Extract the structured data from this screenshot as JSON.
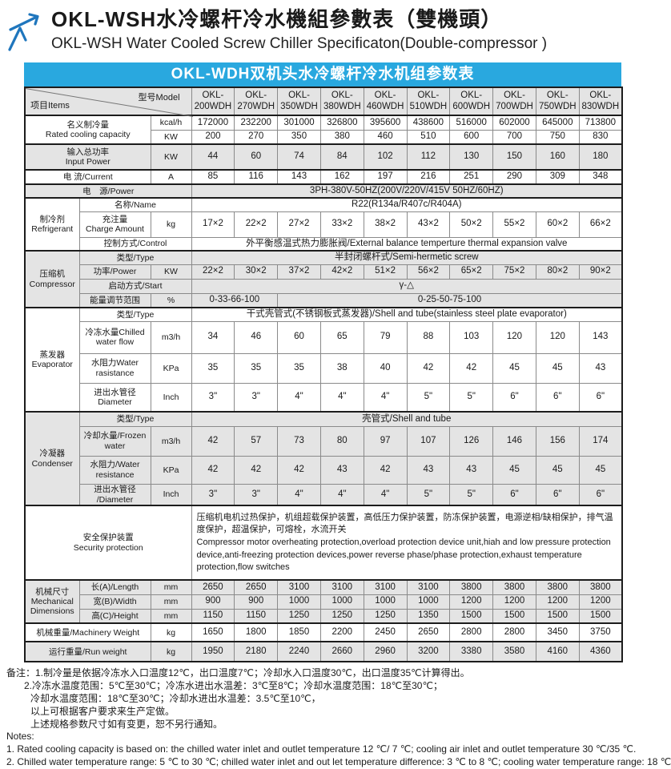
{
  "page": {
    "title_cn": "OKL-WSH水冷螺杆冷水機組參數表（雙機頭）",
    "title_en": "OKL-WSH Water Cooled Screw Chiller Specificaton(Double-compressor )"
  },
  "banner": {
    "text": "OKL-WDH双机头水冷螺杆冷水机组参数表"
  },
  "colors": {
    "banner_blue": "#29a8df",
    "logo_blue": "#1f76bd",
    "band_gray": "#e4e4e4"
  },
  "table": {
    "corner": {
      "items_label": "项目Items",
      "model_label": "型号Model"
    },
    "model_prefix": "OKL-",
    "models": [
      "200WDH",
      "270WDH",
      "350WDH",
      "380WDH",
      "460WDH",
      "510WDH",
      "600WDH",
      "700WDH",
      "750WDH",
      "830WDH"
    ],
    "rows": [
      {
        "name": "rated-cooling-kcal",
        "shade": "white",
        "section_start": true,
        "label": {
          "lines": [
            "名义制冷量",
            "Rated cooling capacity"
          ],
          "colspan": 2,
          "rowspan": 2
        },
        "unit": "kcal/h",
        "values": [
          "172000",
          "232200",
          "301000",
          "326800",
          "395600",
          "438600",
          "516000",
          "602000",
          "645000",
          "713800"
        ]
      },
      {
        "name": "rated-cooling-kw",
        "shade": "white",
        "unit": "KW",
        "values": [
          "200",
          "270",
          "350",
          "380",
          "460",
          "510",
          "600",
          "700",
          "750",
          "830"
        ]
      },
      {
        "name": "input-power",
        "shade": "gray",
        "section_start": true,
        "label": {
          "lines": [
            "输入总功率",
            "Input Power"
          ],
          "colspan": 2
        },
        "unit": "KW",
        "values": [
          "44",
          "60",
          "74",
          "84",
          "102",
          "112",
          "130",
          "150",
          "160",
          "180"
        ]
      },
      {
        "name": "current",
        "shade": "white",
        "section_start": true,
        "label": {
          "lines": [
            "电 流/Current"
          ],
          "colspan": 2
        },
        "unit": "A",
        "values": [
          "85",
          "116",
          "143",
          "162",
          "197",
          "216",
          "251",
          "290",
          "309",
          "348"
        ]
      },
      {
        "name": "power-supply",
        "shade": "gray",
        "section_start": true,
        "label": {
          "lines": [
            "电　源/Power"
          ],
          "colspan": 3
        },
        "value": {
          "text": "3PH-380V-50HZ(200V/220V/415V  50HZ/60HZ)",
          "colspan": 10
        }
      },
      {
        "name": "refrigerant-name",
        "shade": "white",
        "section_start": true,
        "group": {
          "lines": [
            "制冷剂",
            "Refrigerant"
          ],
          "rowspan": 3
        },
        "label": {
          "lines": [
            "名称/Name"
          ],
          "colspan": 2
        },
        "value": {
          "text": "R22(R134a/R407c/R404A)",
          "colspan": 10
        }
      },
      {
        "name": "refrigerant-charge",
        "shade": "white",
        "label": {
          "lines": [
            "充注量",
            "Charge Amount"
          ],
          "colspan": 1
        },
        "unit": "kg",
        "values": [
          "17×2",
          "22×2",
          "27×2",
          "33×2",
          "38×2",
          "43×2",
          "50×2",
          "55×2",
          "60×2",
          "66×2"
        ]
      },
      {
        "name": "refrigerant-control",
        "shade": "white",
        "label": {
          "lines": [
            "控制方式/Control"
          ],
          "colspan": 2
        },
        "value": {
          "text": "外平衡感温式热力膨胀阀/External balance temperture thermal expansion valve",
          "colspan": 10
        }
      },
      {
        "name": "compressor-type",
        "shade": "gray",
        "section_start": true,
        "group": {
          "lines": [
            "压缩机",
            "Compressor"
          ],
          "rowspan": 4
        },
        "label": {
          "lines": [
            "类型/Type"
          ],
          "colspan": 2
        },
        "value": {
          "text": "半封闭螺杆式/Semi-hermetic screw",
          "colspan": 10
        }
      },
      {
        "name": "compressor-power",
        "shade": "gray",
        "label": {
          "lines": [
            "功率/Power"
          ],
          "colspan": 1
        },
        "unit": "KW",
        "values": [
          "22×2",
          "30×2",
          "37×2",
          "42×2",
          "51×2",
          "56×2",
          "65×2",
          "75×2",
          "80×2",
          "90×2"
        ]
      },
      {
        "name": "compressor-start",
        "shade": "gray",
        "label": {
          "lines": [
            "启动方式/Start"
          ],
          "colspan": 2
        },
        "value": {
          "text": "γ-△",
          "colspan": 10
        }
      },
      {
        "name": "energy-range",
        "shade": "gray",
        "label": {
          "lines": [
            "能量调节范围"
          ],
          "colspan": 1
        },
        "unit": "%",
        "values_span": [
          {
            "text": "0-33-66-100",
            "colspan": 2
          },
          {
            "text": "0-25-50-75-100",
            "colspan": 8
          }
        ]
      },
      {
        "name": "evaporator-type",
        "shade": "white",
        "section_start": true,
        "group": {
          "lines": [
            "蒸发器",
            "Evaporator"
          ],
          "rowspan": 4
        },
        "label": {
          "lines": [
            "类型/Type"
          ],
          "colspan": 2
        },
        "value": {
          "text": "干式壳管式(不锈钢板式蒸发器)/Shell and tube(stainless steel plate evaporator)",
          "colspan": 10
        }
      },
      {
        "name": "chilled-water-flow",
        "shade": "white",
        "label": {
          "lines": [
            "冷冻水量Chilled",
            "water flow"
          ],
          "colspan": 1
        },
        "unit": "m3/h",
        "values": [
          "34",
          "46",
          "60",
          "65",
          "79",
          "88",
          "103",
          "120",
          "120",
          "143"
        ]
      },
      {
        "name": "evap-water-resistance",
        "shade": "white",
        "label": {
          "lines": [
            "水阻力Water",
            "rasistance"
          ],
          "colspan": 1
        },
        "unit": "KPa",
        "values": [
          "35",
          "35",
          "35",
          "38",
          "40",
          "42",
          "42",
          "45",
          "45",
          "43"
        ]
      },
      {
        "name": "evap-pipe-diameter",
        "shade": "white",
        "label": {
          "lines": [
            "进出水管径",
            "Diameter"
          ],
          "colspan": 1
        },
        "unit": "Inch",
        "values": [
          "3\"",
          "3\"",
          "4\"",
          "4\"",
          "4\"",
          "5\"",
          "5\"",
          "6\"",
          "6\"",
          "6\""
        ]
      },
      {
        "name": "condenser-type",
        "shade": "gray",
        "section_start": true,
        "group": {
          "lines": [
            "冷凝器",
            "Condenser"
          ],
          "rowspan": 4
        },
        "label": {
          "lines": [
            "类型/Type"
          ],
          "colspan": 2
        },
        "value": {
          "text": "壳管式/Shell and tube",
          "colspan": 10
        }
      },
      {
        "name": "cooling-water-flow",
        "shade": "gray",
        "label": {
          "lines": [
            "冷却水量/Frozen",
            "water"
          ],
          "colspan": 1
        },
        "unit": "m3/h",
        "values": [
          "42",
          "57",
          "73",
          "80",
          "97",
          "107",
          "126",
          "146",
          "156",
          "174"
        ]
      },
      {
        "name": "cond-water-resistance",
        "shade": "gray",
        "label": {
          "lines": [
            "水阻力/Water",
            "resistance"
          ],
          "colspan": 1
        },
        "unit": "KPa",
        "values": [
          "42",
          "42",
          "42",
          "43",
          "42",
          "43",
          "43",
          "45",
          "45",
          "45"
        ]
      },
      {
        "name": "cond-pipe-diameter",
        "shade": "gray",
        "label": {
          "lines": [
            "进出水管径",
            "/Diameter"
          ],
          "colspan": 1
        },
        "unit": "Inch",
        "values": [
          "3\"",
          "3\"",
          "4\"",
          "4\"",
          "4\"",
          "5\"",
          "5\"",
          "6\"",
          "6\"",
          "6\""
        ]
      },
      {
        "name": "security-protection",
        "shade": "white",
        "section_start": true,
        "label": {
          "lines": [
            "安全保护装置",
            "Security protection"
          ],
          "colspan": 3
        },
        "security": {
          "cn": "压缩机电机过热保护，机组超载保护装置，高低压力保护装置，防冻保护装置，电源逆相/缺相保护，排气温度保护，超温保护，可熔栓，水流开关",
          "en": "Compressor motor overheating protection,overload protection device unit,hiah and low pressure protection device,anti-freezing protection devices,power reverse phase/phase protection,exhaust temperature protection,flow switches"
        }
      },
      {
        "name": "length",
        "shade": "gray",
        "section_start": true,
        "group": {
          "lines": [
            "机械尺寸",
            "Mechanical",
            "Dimensions"
          ],
          "rowspan": 3
        },
        "label": {
          "lines": [
            "长(A)/Length"
          ],
          "colspan": 1
        },
        "unit": "mm",
        "values": [
          "2650",
          "2650",
          "3100",
          "3100",
          "3100",
          "3100",
          "3800",
          "3800",
          "3800",
          "3800"
        ]
      },
      {
        "name": "width",
        "shade": "gray",
        "label": {
          "lines": [
            "宽(B)/Width"
          ],
          "colspan": 1
        },
        "unit": "mm",
        "values": [
          "900",
          "900",
          "1000",
          "1000",
          "1000",
          "1000",
          "1200",
          "1200",
          "1200",
          "1200"
        ]
      },
      {
        "name": "height",
        "shade": "gray",
        "label": {
          "lines": [
            "高(C)/Height"
          ],
          "colspan": 1
        },
        "unit": "mm",
        "values": [
          "1150",
          "1150",
          "1250",
          "1250",
          "1250",
          "1350",
          "1500",
          "1500",
          "1500",
          "1500"
        ]
      },
      {
        "name": "machinery-weight",
        "shade": "white",
        "section_start": true,
        "label": {
          "lines": [
            "机械重量/Machinery Weight"
          ],
          "colspan": 2
        },
        "unit": "kg",
        "values": [
          "1650",
          "1800",
          "1850",
          "2200",
          "2450",
          "2650",
          "2800",
          "2800",
          "3450",
          "3750"
        ]
      },
      {
        "name": "run-weight",
        "shade": "gray",
        "section_start": true,
        "label": {
          "lines": [
            "运行重量/Run weight"
          ],
          "colspan": 2
        },
        "unit": "kg",
        "values": [
          "1950",
          "2180",
          "2240",
          "2660",
          "2960",
          "3200",
          "3380",
          "3580",
          "4160",
          "4360"
        ]
      }
    ]
  },
  "notes": {
    "lines": [
      "备注：1.制冷量是依据冷冻水入口温度12℃，出口温度7℃；冷却水入口温度30℃，出口温度35℃计算得出。",
      "2.冷冻水温度范围：5℃至30℃；冷冻水进出水温差：3℃至8℃；冷却水温度范围：18℃至30℃；",
      "冷却水温度范围：18℃至30℃；冷却水进出水温差：3.5℃至10℃，",
      "以上可根据客户要求来生产定做。",
      "上述规格参数尺寸如有变更，恕不另行通知。",
      "Notes:",
      "1. Rated cooling capacity is based on: the chilled water inlet and outlet temperature 12 ℃/ 7 ℃; cooling air inlet and outlet temperature 30 ℃/35 ℃.",
      "2. Chilled water temperature range: 5 ℃ to 30 ℃; chilled water inlet and out let temperature difference: 3 ℃ to 8 ℃; cooling water temperature range: 18 ℃"
    ]
  }
}
